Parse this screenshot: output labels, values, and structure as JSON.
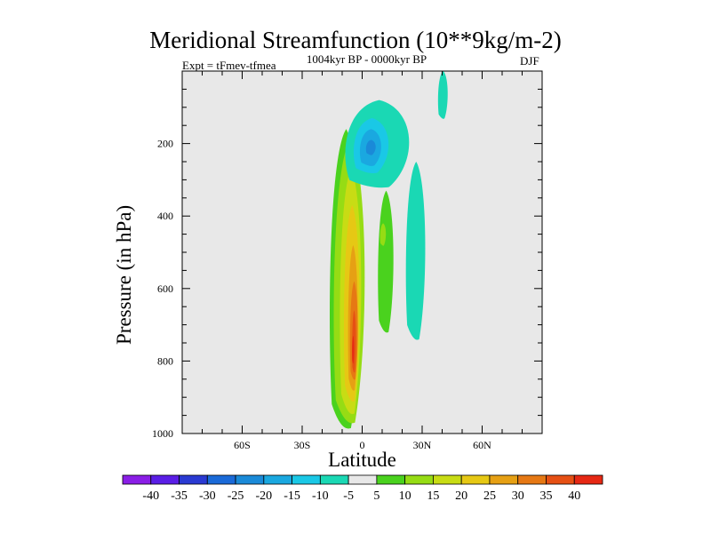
{
  "header": {
    "title": "Meridional Streamfunction (10**9kg/m-2)",
    "experiment": "Expt = tFmev-tfmea",
    "period": "1004kyr BP - 0000kyr BP",
    "season": "DJF"
  },
  "chart_data": {
    "type": "heatmap",
    "title": "Meridional Streamfunction (10**9kg/m-2)",
    "xlabel": "Latitude",
    "ylabel": "Pressure (in hPa)",
    "xlim": [
      -90,
      90
    ],
    "ylim": [
      1000,
      0
    ],
    "x_ticks": [
      {
        "value": -60,
        "label": "60S"
      },
      {
        "value": -30,
        "label": "30S"
      },
      {
        "value": 0,
        "label": "0"
      },
      {
        "value": 30,
        "label": "30N"
      },
      {
        "value": 60,
        "label": "60N"
      }
    ],
    "y_ticks": [
      {
        "value": 200,
        "label": "200"
      },
      {
        "value": 400,
        "label": "400"
      },
      {
        "value": 600,
        "label": "600"
      },
      {
        "value": 800,
        "label": "800"
      },
      {
        "value": 1000,
        "label": "1000"
      }
    ],
    "colorbar": {
      "levels": [
        "-40",
        "-35",
        "-30",
        "-25",
        "-20",
        "-15",
        "-10",
        "-5",
        "5",
        "10",
        "15",
        "20",
        "25",
        "30",
        "35",
        "40"
      ],
      "colors": [
        "#8a1ee6",
        "#5a1ee6",
        "#2a3ad2",
        "#1a6ad8",
        "#1a8ad8",
        "#1aa8e0",
        "#1ac8e6",
        "#1ad8b4",
        "#e8e8e8",
        "#4ad21e",
        "#96dc14",
        "#c8dc14",
        "#e6c814",
        "#e6a014",
        "#e67814",
        "#e65014",
        "#e62814"
      ]
    },
    "contours": [
      {
        "level": "5",
        "color": "#4ad21e",
        "lat_range": [
          -16,
          0
        ],
        "p_range": [
          985,
          160
        ]
      },
      {
        "level": "10",
        "color": "#96dc14",
        "lat_range": [
          -14,
          2
        ],
        "p_range": [
          970,
          190
        ]
      },
      {
        "level": "15",
        "color": "#c8dc14",
        "lat_range": [
          -11,
          0
        ],
        "p_range": [
          945,
          270
        ]
      },
      {
        "level": "20",
        "color": "#e6c814",
        "lat_range": [
          -9,
          -1
        ],
        "p_range": [
          910,
          370
        ]
      },
      {
        "level": "25",
        "color": "#e6a014",
        "lat_range": [
          -7,
          -2
        ],
        "p_range": [
          880,
          480
        ]
      },
      {
        "level": "30",
        "color": "#e67814",
        "lat_range": [
          -6,
          -2
        ],
        "p_range": [
          850,
          580
        ]
      },
      {
        "level": "35",
        "color": "#e65014",
        "lat_range": [
          -5,
          -3
        ],
        "p_range": [
          830,
          660
        ]
      },
      {
        "level": "40",
        "color": "#e62814",
        "lat_range": [
          -5,
          -4
        ],
        "p_range": [
          805,
          730
        ]
      },
      {
        "level": "5",
        "color": "#4ad21e",
        "lat_range": [
          8,
          16
        ],
        "p_range": [
          720,
          330
        ]
      },
      {
        "level": "10",
        "color": "#96dc14",
        "lat_range": [
          9,
          12
        ],
        "p_range": [
          480,
          420
        ]
      },
      {
        "level": "-5",
        "color": "#1ad8b4",
        "lat_range": [
          -8,
          25
        ],
        "p_range": [
          320,
          80
        ]
      },
      {
        "level": "-10",
        "color": "#1ac8e6",
        "lat_range": [
          -4,
          14
        ],
        "p_range": [
          280,
          130
        ]
      },
      {
        "level": "-15",
        "color": "#1aa8e0",
        "lat_range": [
          -1,
          10
        ],
        "p_range": [
          260,
          160
        ]
      },
      {
        "level": "-20",
        "color": "#1a8ad8",
        "lat_range": [
          2,
          7
        ],
        "p_range": [
          230,
          190
        ]
      },
      {
        "level": "-5",
        "color": "#1ad8b4",
        "lat_range": [
          22,
          32
        ],
        "p_range": [
          740,
          250
        ]
      },
      {
        "level": "-5",
        "color": "#1ad8b4",
        "lat_range": [
          38,
          43
        ],
        "p_range": [
          130,
          0
        ]
      }
    ]
  }
}
